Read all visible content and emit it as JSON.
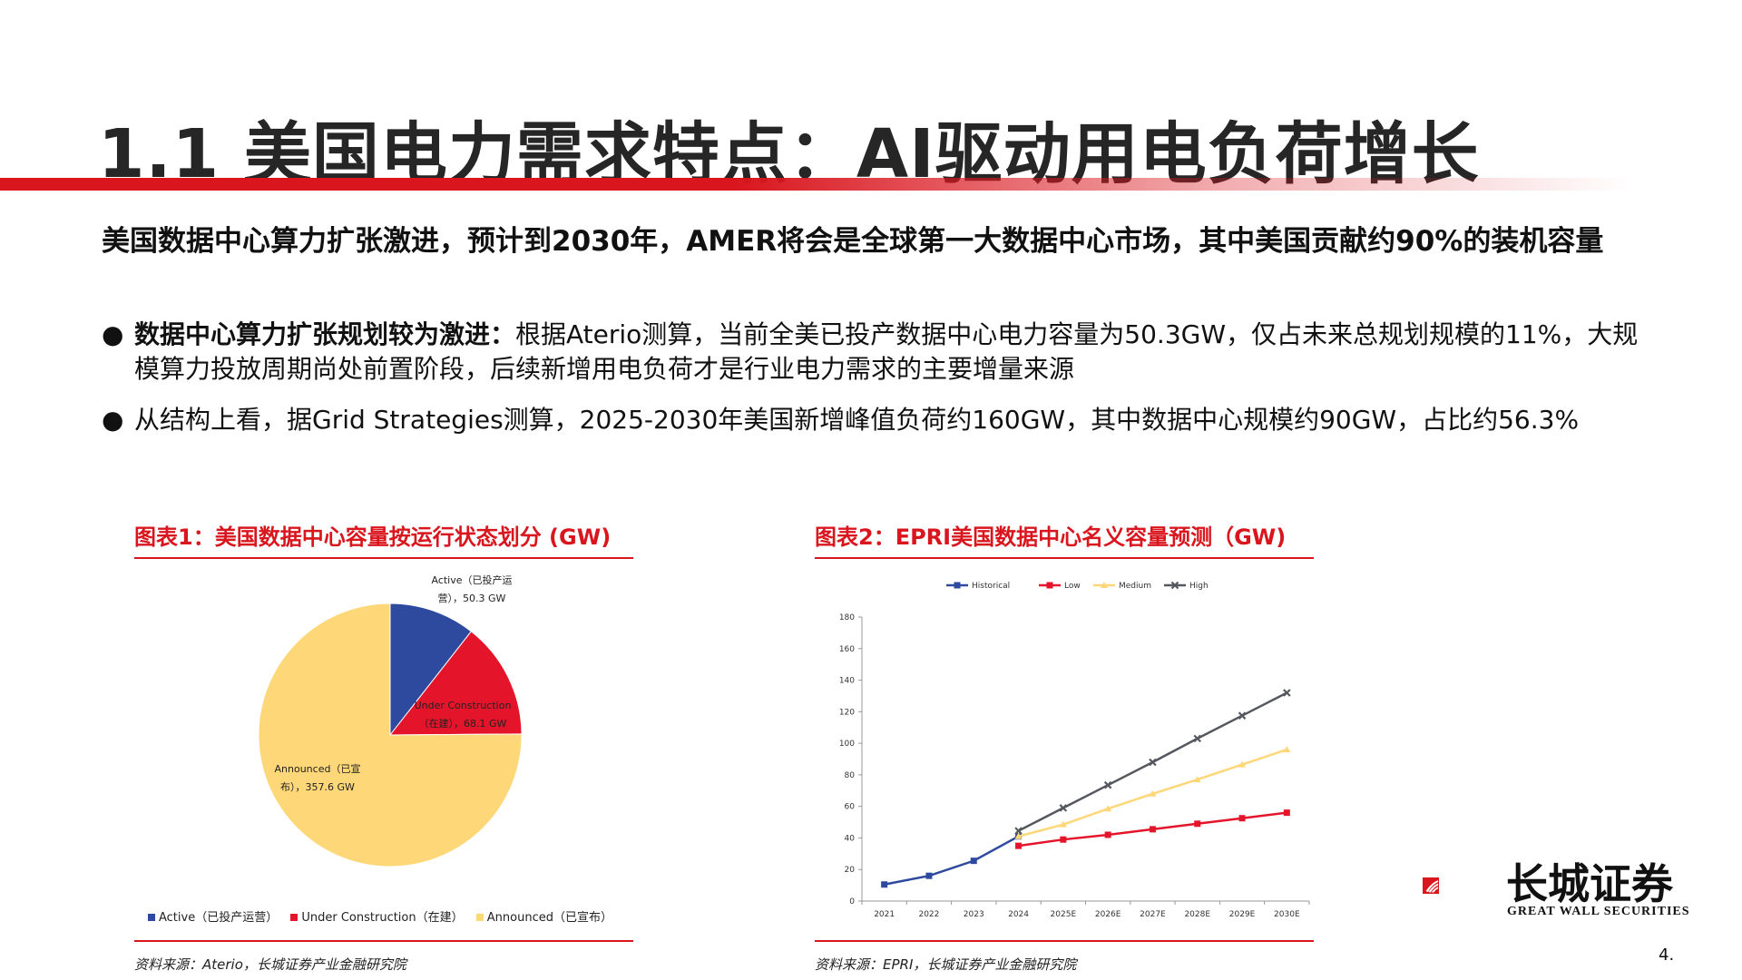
{
  "header": {
    "title": "1.1 美国电力需求特点：AI驱动用电负荷增长"
  },
  "headline": "美国数据中心算力扩张激进，预计到2030年，AMER将会是全球第一大数据中心市场，其中美国贡献约90%的装机容量",
  "bullets": [
    {
      "bold": "数据中心算力扩张规划较为激进：",
      "text": "根据Aterio测算，当前全美已投产数据中心电力容量为50.3GW，仅占未来总规划规模的11%，大规模算力投放周期尚处前置阶段，后续新增用电负荷才是行业电力需求的主要增量来源"
    },
    {
      "bold": "",
      "text": "从结构上看，据Grid Strategies测算，2025-2030年美国新增峰值负荷约160GW，其中数据中心规模约90GW，占比约56.3%"
    }
  ],
  "bullet_glyph": "●",
  "chart1": {
    "title": "图表1：美国数据中心容量按运行状态划分 (GW)",
    "source": "资料来源：Aterio，长城证券产业金融研究院",
    "labels": {
      "active_line1": "Active（已投产运",
      "active_line2": "营），50.3 GW",
      "uc_line1": "Under Construction",
      "uc_line2": "（在建），68.1 GW",
      "ann_line1": "Announced（已宣",
      "ann_line2": "布），357.6 GW"
    },
    "legend": [
      "Active（已投产运营）",
      "Under Construction（在建）",
      "Announced（已宣布）"
    ]
  },
  "chart2": {
    "title": "图表2：EPRI美国数据中心名义容量预测（GW)",
    "source": "资料来源：EPRI，长城证券产业金融研究院"
  },
  "chart_data": [
    {
      "type": "pie",
      "title": "图表1：美国数据中心容量按运行状态划分 (GW)",
      "slices": [
        {
          "name": "Active（已投产运营）",
          "value": 50.3,
          "color": "#2e4a9e"
        },
        {
          "name": "Under Construction（在建）",
          "value": 68.1,
          "color": "#e4152b"
        },
        {
          "name": "Announced（已宣布）",
          "value": 357.6,
          "color": "#fdd778"
        }
      ],
      "legend": "bottom"
    },
    {
      "type": "line",
      "title": "图表2：EPRI美国数据中心名义容量预测（GW)",
      "categories": [
        "2021",
        "2022",
        "2023",
        "2024",
        "2025E",
        "2026E",
        "2027E",
        "2028E",
        "2029E",
        "2030E"
      ],
      "ylim": [
        0,
        180
      ],
      "yticks": [
        0,
        20,
        40,
        60,
        80,
        100,
        120,
        140,
        160,
        180
      ],
      "legend": "top",
      "series": [
        {
          "name": "Historical",
          "color": "#2e4a9e",
          "marker": "square",
          "values": [
            10.5,
            16,
            25.5,
            41,
            null,
            null,
            null,
            null,
            null,
            null
          ]
        },
        {
          "name": "Low",
          "color": "#e4152b",
          "marker": "square",
          "values": [
            null,
            null,
            null,
            35,
            39,
            42,
            45.5,
            49,
            52.5,
            56
          ]
        },
        {
          "name": "Medium",
          "color": "#fdd778",
          "marker": "triangle",
          "values": [
            null,
            null,
            null,
            41,
            48.5,
            58.5,
            68,
            77,
            86.5,
            96
          ]
        },
        {
          "name": "High",
          "color": "#55585e",
          "marker": "x",
          "values": [
            null,
            null,
            null,
            44.5,
            59,
            73.5,
            88,
            103,
            117.5,
            132
          ]
        }
      ]
    }
  ],
  "logo": {
    "cn": "长城证券",
    "en": "GREAT WALL SECURITIES"
  },
  "page_number": "4."
}
